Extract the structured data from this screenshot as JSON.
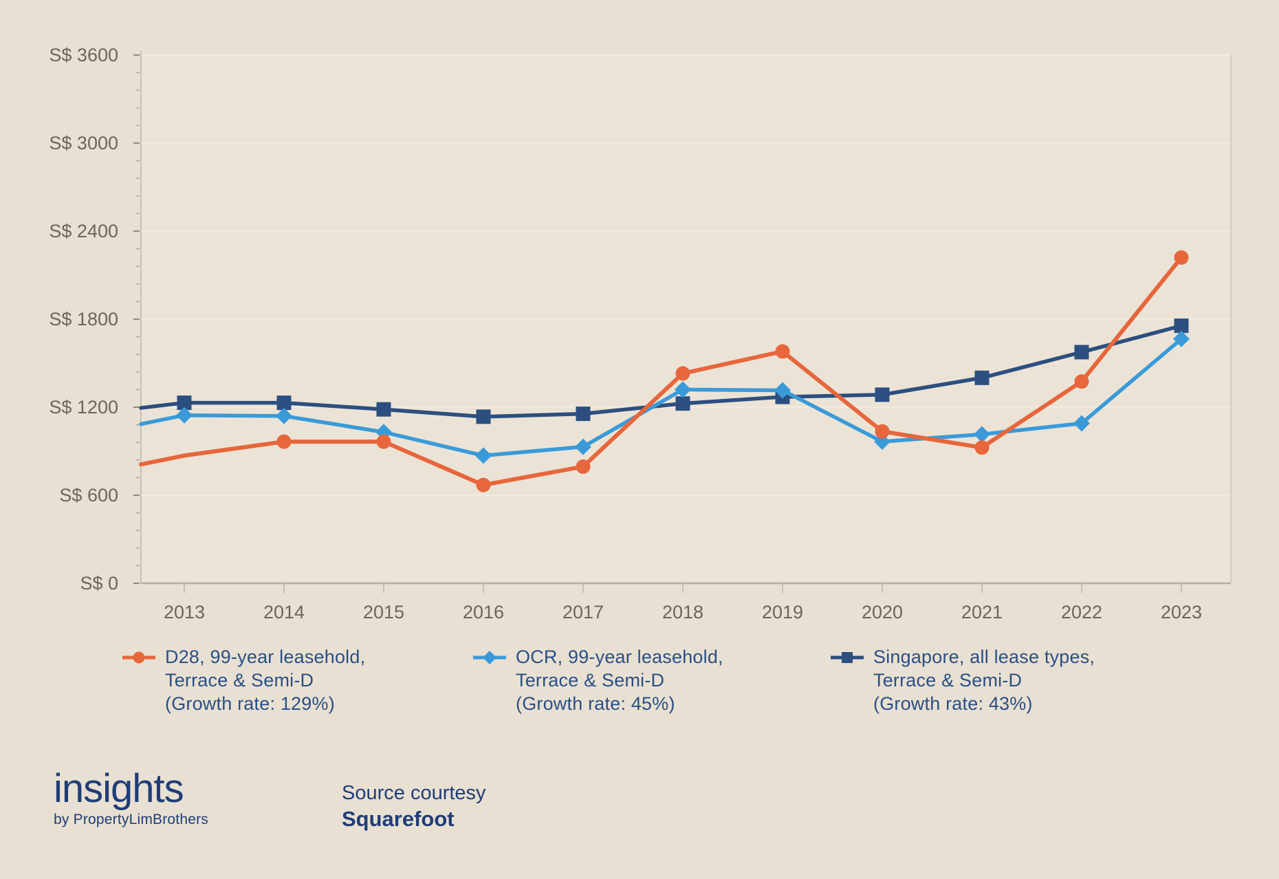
{
  "page": {
    "background": "#e8e0d2",
    "plot_background": "#ebe4d6",
    "text_navy": "#2a4f85",
    "axis_label_color": "#6b665c"
  },
  "chart_data": {
    "type": "line",
    "title": "",
    "x": [
      2013,
      2014,
      2015,
      2016,
      2017,
      2018,
      2019,
      2020,
      2021,
      2022,
      2023
    ],
    "x_tick_labels": [
      "2013",
      "2014",
      "2015",
      "2016",
      "2017",
      "2018",
      "2019",
      "2020",
      "2021",
      "2022",
      "2023"
    ],
    "y_ticks": [
      {
        "value": 0,
        "label": "S$ 0"
      },
      {
        "value": 600,
        "label": "S$ 600"
      },
      {
        "value": 1200,
        "label": "S$ 1200"
      },
      {
        "value": 1800,
        "label": "S$ 1800"
      },
      {
        "value": 2400,
        "label": "S$ 2400"
      },
      {
        "value": 3000,
        "label": "S$ 3000"
      },
      {
        "value": 3600,
        "label": "S$ 3600"
      }
    ],
    "ylim": [
      0,
      3600
    ],
    "minor_tick_step": 120,
    "grid": "faint-horizontal-major",
    "legend_position": "bottom",
    "currency_prefix": "S$",
    "series": [
      {
        "name": "D28, 99-year leasehold, Terrace & Semi-D",
        "growth_rate": "129%",
        "color": "#e7663c",
        "marker": "circle",
        "axis_edge_start": 810,
        "markers_from_index": 1,
        "values": [
          870,
          965,
          965,
          670,
          795,
          1430,
          1580,
          1035,
          925,
          1375,
          2220
        ]
      },
      {
        "name": "OCR, 99-year leasehold, Terrace & Semi-D",
        "growth_rate": "45%",
        "color": "#3a9ad9",
        "marker": "diamond",
        "axis_edge_start": 1085,
        "markers_from_index": 0,
        "values": [
          1145,
          1140,
          1030,
          870,
          930,
          1320,
          1315,
          965,
          1015,
          1090,
          1665
        ]
      },
      {
        "name": "Singapore, all lease types, Terrace & Semi-D",
        "growth_rate": "43%",
        "color": "#2c4f80",
        "marker": "square",
        "axis_edge_start": 1195,
        "markers_from_index": 0,
        "values": [
          1230,
          1230,
          1185,
          1135,
          1155,
          1225,
          1270,
          1285,
          1400,
          1575,
          1755
        ]
      }
    ]
  },
  "legend": {
    "items": [
      {
        "series": "d28",
        "lines": [
          "D28, 99-year leasehold,",
          "Terrace & Semi-D",
          "(Growth rate: 129%)"
        ]
      },
      {
        "series": "ocr",
        "lines": [
          "OCR, 99-year leasehold,",
          "Terrace & Semi-D",
          "(Growth rate: 45%)"
        ]
      },
      {
        "series": "singapore",
        "lines": [
          "Singapore, all lease types,",
          "Terrace & Semi-D",
          "(Growth rate: 43%)"
        ]
      }
    ]
  },
  "footer": {
    "logo_title": "insights",
    "logo_subtitle": "by PropertyLimBrothers",
    "source_label": "Source courtesy",
    "source_name": "Squarefoot"
  }
}
